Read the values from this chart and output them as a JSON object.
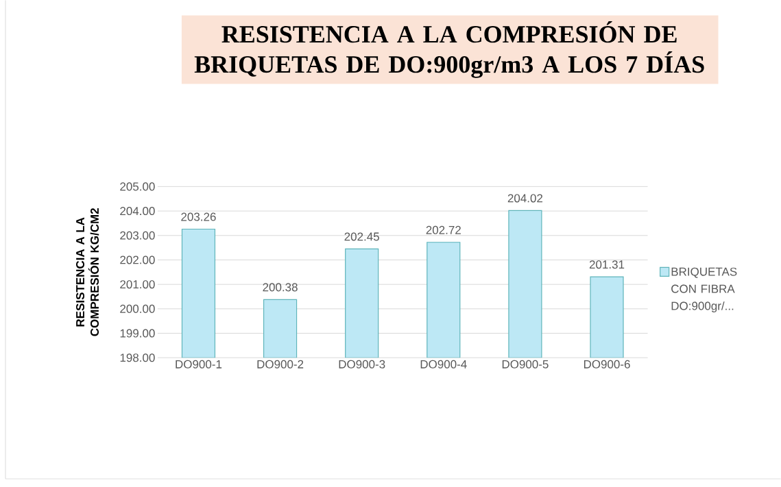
{
  "chart_data": {
    "type": "bar",
    "title": "RESISTENCIA A LA COMPRESIÓN DE BRIQUETAS DE DO:900gr/m3 A LOS 7 DÍAS",
    "ylabel": "RESISTENCIA A LA COMPRESIÓN KG/CM2",
    "categories": [
      "DO900-1",
      "DO900-2",
      "DO900-3",
      "DO900-4",
      "DO900-5",
      "DO900-6"
    ],
    "series": [
      {
        "name": "BRIQUETAS CON FIBRA DO:900gr/...",
        "color": "#bde8f5",
        "values": [
          203.26,
          200.38,
          202.45,
          202.72,
          204.02,
          201.31
        ]
      }
    ],
    "ylim": [
      198,
      205
    ],
    "yticks": [
      {
        "value": 198,
        "label": "198.00"
      },
      {
        "value": 199,
        "label": "199.00"
      },
      {
        "value": 200,
        "label": "200.00"
      },
      {
        "value": 201,
        "label": "201.00"
      },
      {
        "value": 202,
        "label": "202.00"
      },
      {
        "value": 203,
        "label": "203.00"
      },
      {
        "value": 204,
        "label": "204.00"
      },
      {
        "value": 205,
        "label": "205.00"
      }
    ],
    "grid": "y",
    "legend": "right",
    "data_labels": true
  }
}
